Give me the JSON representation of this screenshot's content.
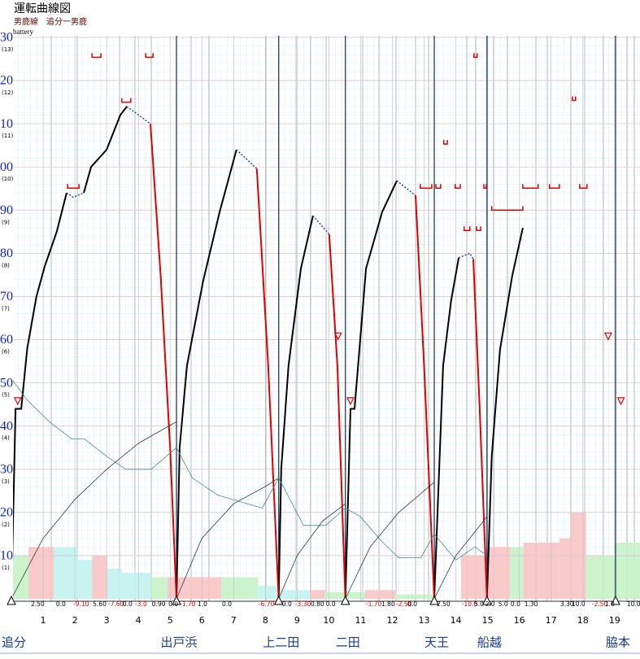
{
  "chart_data": {
    "type": "line",
    "title": "運転曲線図",
    "subtitle": "男鹿線　追分一男鹿",
    "y_axis_label": "battery",
    "xlim": [
      0,
      19.8
    ],
    "ylim": [
      0,
      130
    ],
    "xticks": [
      1,
      2,
      3,
      4,
      5,
      6,
      7,
      8,
      9,
      10,
      11,
      12,
      13,
      14,
      15,
      16,
      17,
      18,
      19
    ],
    "yticks": [
      {
        "value": 130,
        "label": "30"
      },
      {
        "value": 120,
        "label": "20"
      },
      {
        "value": 110,
        "label": "10"
      },
      {
        "value": 100,
        "label": "00"
      },
      90,
      80,
      70,
      60,
      50,
      40,
      30,
      20,
      10
    ],
    "y2lim": [
      0,
      13
    ],
    "y2ticks": [
      {
        "value": 13,
        "label": "(13)"
      },
      {
        "value": 12,
        "label": "(12)"
      },
      {
        "value": 11,
        "label": "(11)"
      },
      {
        "value": 10,
        "label": "(10)"
      },
      {
        "value": 9,
        "label": "(9)"
      },
      {
        "value": 8,
        "label": "(8)"
      },
      {
        "value": 7,
        "label": "(7)"
      },
      {
        "value": 6,
        "label": "(6)"
      },
      {
        "value": 5,
        "label": "(5)"
      },
      {
        "value": 4,
        "label": "(4)"
      },
      {
        "value": 3,
        "label": "(3)"
      },
      {
        "value": 2,
        "label": "(2)"
      },
      {
        "value": 1,
        "label": "(1)"
      }
    ],
    "grid": true,
    "series": [
      {
        "color": "#000000",
        "style": "solid",
        "x": [
          0,
          0.13,
          0.31,
          0.5,
          0.79,
          1.05,
          1.43,
          1.74,
          null,
          2.28,
          2.51,
          3.0,
          3.43,
          3.64,
          null,
          5.2,
          5.3,
          5.53,
          6.04,
          6.56,
          7.09,
          null,
          8.42,
          8.5,
          8.73,
          9.12,
          9.5,
          null,
          10.52,
          10.68,
          10.81,
          11.17,
          11.68,
          12.14,
          null,
          13.32,
          13.6,
          13.85,
          14.09,
          null,
          14.98,
          15.13,
          15.39,
          15.77,
          16.11
        ],
        "values": [
          0,
          44,
          44,
          58,
          70,
          77,
          85,
          94,
          null,
          94,
          100,
          104,
          112,
          114,
          null,
          0,
          35,
          54,
          73.6,
          89.6,
          104,
          null,
          0,
          30,
          54,
          76.5,
          88.7,
          null,
          0,
          44,
          44,
          76.5,
          89.6,
          96.8,
          null,
          0,
          54,
          69,
          79,
          null,
          0,
          33,
          57.6,
          74.6,
          85.9
        ]
      },
      {
        "color": "#2a3fd0",
        "style": "dotted",
        "x": [
          1.74,
          1.95,
          2.28,
          null,
          3.64,
          4.38,
          null,
          7.09,
          7.73,
          null,
          9.5,
          10.01,
          null,
          12.14,
          12.73,
          null,
          14.09,
          14.44,
          14.55
        ],
        "values": [
          94,
          93,
          94,
          null,
          114,
          110,
          null,
          104,
          99.6,
          null,
          88.7,
          84.4,
          null,
          96.8,
          93.4,
          null,
          79,
          80,
          78.7
        ]
      },
      {
        "color": "#e00000",
        "style": "solid",
        "x": [
          4.38,
          4.7,
          5.0,
          5.2,
          null,
          7.73,
          8.09,
          8.42,
          null,
          10.01,
          10.27,
          10.52,
          null,
          12.73,
          13.0,
          13.32,
          null,
          14.55,
          14.75,
          14.98
        ],
        "values": [
          110,
          75,
          35,
          0,
          null,
          99.6,
          54,
          0,
          null,
          84.4,
          54,
          0,
          null,
          93.4,
          54,
          0,
          null,
          78.7,
          44.4,
          0
        ]
      },
      {
        "color": "#4a8a8a",
        "style": "thin",
        "x": [
          0,
          0.5,
          1.2,
          1.9,
          2.3,
          3.0,
          3.6,
          4.4,
          5.2,
          5.7,
          6.5,
          7.9,
          8.42,
          9.2,
          9.9,
          10.52,
          11.0,
          11.7,
          12.2,
          12.9,
          13.32,
          14.0,
          14.6,
          14.98
        ],
        "values": [
          51,
          46,
          41,
          37,
          37,
          33,
          30,
          30,
          35,
          28,
          24,
          21,
          28,
          17,
          17,
          21,
          19,
          13,
          9.5,
          9.5,
          15,
          9,
          12,
          10
        ]
      },
      {
        "color": "#2b3b3b",
        "style": "thin",
        "x": [
          0,
          1,
          2,
          3,
          4,
          5.2,
          null,
          5.2,
          6,
          7,
          8,
          8.42,
          null,
          8.42,
          9,
          9.8,
          10.52,
          null,
          10.52,
          11.3,
          12.2,
          13.32,
          null,
          13.32,
          14,
          14.98
        ],
        "values": [
          0,
          14,
          23,
          30,
          36,
          41,
          null,
          0,
          14,
          22,
          26,
          28,
          null,
          0,
          10,
          18,
          22,
          null,
          0,
          12,
          20,
          27,
          null,
          0,
          10,
          19
        ]
      }
    ],
    "limits": [
      {
        "x": [
          2.54,
          2.82
        ],
        "value": 125.4
      },
      {
        "x": [
          4.23,
          4.46
        ],
        "value": 125.4
      },
      {
        "x": [
          3.48,
          3.76
        ],
        "value": 115
      },
      {
        "x": [
          1.77,
          2.13
        ],
        "value": 95.1
      },
      {
        "x": [
          12.88,
          13.24
        ],
        "value": 95.1
      },
      {
        "x": [
          13.37,
          13.52
        ],
        "value": 95.1
      },
      {
        "x": [
          13.98,
          14.14
        ],
        "value": 95.1
      },
      {
        "x": [
          14.88,
          14.96
        ],
        "value": 95.1
      },
      {
        "x": [
          16.11,
          16.59
        ],
        "value": 95.1
      },
      {
        "x": [
          16.95,
          17.26
        ],
        "value": 95.1
      },
      {
        "x": [
          17.9,
          18.13
        ],
        "value": 95.1
      },
      {
        "x": [
          15.13,
          16.11
        ],
        "value": 90
      },
      {
        "x": [
          14.26,
          14.44
        ],
        "value": 85.3
      },
      {
        "x": [
          14.65,
          14.78
        ],
        "value": 85.3
      },
      {
        "x": [
          13.62,
          13.73
        ],
        "value": 105.3
      },
      {
        "x": [
          14.57,
          14.67
        ],
        "value": 125.4
      },
      {
        "x": [
          17.67,
          17.77
        ],
        "value": 115.4
      }
    ],
    "markers": [
      {
        "x": 0.2,
        "value": 45.8
      },
      {
        "x": 10.29,
        "value": 60.8
      },
      {
        "x": 10.68,
        "value": 45.8
      },
      {
        "x": 18.8,
        "value": 60.8
      },
      {
        "x": 19.2,
        "value": 45.8
      }
    ],
    "profile": [
      {
        "x": [
          0,
          0.54
        ],
        "value": 10,
        "color": "#c6f2c6"
      },
      {
        "x": [
          0.54,
          1.33
        ],
        "value": 12,
        "color": "#f7c4c4"
      },
      {
        "x": [
          1.33,
          2.1
        ],
        "value": 12,
        "color": "#c2f2ee"
      },
      {
        "x": [
          2.1,
          2.54
        ],
        "value": 9,
        "color": "#c2f2ee"
      },
      {
        "x": [
          2.54,
          3.02
        ],
        "value": 10,
        "color": "#f7c4c4"
      },
      {
        "x": [
          3.02,
          3.48
        ],
        "value": 7,
        "color": "#c2f2ee"
      },
      {
        "x": [
          3.48,
          4.4
        ],
        "value": 6,
        "color": "#c2f2ee"
      },
      {
        "x": [
          4.4,
          4.92
        ],
        "value": 5,
        "color": "#c6f2c6"
      },
      {
        "x": [
          4.92,
          6.61
        ],
        "value": 5,
        "color": "#f7c4c4"
      },
      {
        "x": [
          6.61,
          7.76
        ],
        "value": 5,
        "color": "#c6f2c6"
      },
      {
        "x": [
          7.76,
          8.5
        ],
        "value": 3,
        "color": "#c2f2ee"
      },
      {
        "x": [
          8.5,
          9.4
        ],
        "value": 2,
        "color": "#c2f2ee"
      },
      {
        "x": [
          9.4,
          9.88
        ],
        "value": 2,
        "color": "#f7c4c4"
      },
      {
        "x": [
          9.88,
          11.14
        ],
        "value": 1.5,
        "color": "#c6f2c6"
      },
      {
        "x": [
          11.14,
          12.09
        ],
        "value": 2,
        "color": "#f7c4c4"
      },
      {
        "x": [
          12.09,
          13.37
        ],
        "value": 1,
        "color": "#c6f2c6"
      },
      {
        "x": [
          14.16,
          14.9
        ],
        "value": 10,
        "color": "#f7c4c4"
      },
      {
        "x": [
          14.9,
          15.7
        ],
        "value": 12,
        "color": "#f7c4c4"
      },
      {
        "x": [
          15.7,
          16.13
        ],
        "value": 12,
        "color": "#c6f2c6"
      },
      {
        "x": [
          16.13,
          17.26
        ],
        "value": 13,
        "color": "#f7c4c4"
      },
      {
        "x": [
          17.26,
          17.62
        ],
        "value": 14,
        "color": "#f7c4c4"
      },
      {
        "x": [
          17.62,
          18.1
        ],
        "value": 20,
        "color": "#f7c4c4"
      },
      {
        "x": [
          18.1,
          19.0
        ],
        "value": 10,
        "color": "#c6f2c6"
      },
      {
        "x": [
          19.0,
          19.8
        ],
        "value": 13,
        "color": "#c6f2c6"
      }
    ],
    "gradients": [
      {
        "km": 0.59,
        "label": "2.50"
      },
      {
        "km": 1.38,
        "label": "0.0"
      },
      {
        "km": 1.92,
        "label": "-9.10"
      },
      {
        "km": 2.54,
        "label": "5.60"
      },
      {
        "km": 3.02,
        "label": "-7.60"
      },
      {
        "km": 3.48,
        "label": "0.0"
      },
      {
        "km": 3.87,
        "label": "-3.0"
      },
      {
        "km": 4.4,
        "label": "0.90"
      },
      {
        "km": 4.92,
        "label": "0.0"
      },
      {
        "km": 5.28,
        "label": "-1.70"
      },
      {
        "km": 5.84,
        "label": "1.0"
      },
      {
        "km": 6.61,
        "label": "0.0"
      },
      {
        "km": 7.76,
        "label": "-6.70"
      },
      {
        "km": 8.5,
        "label": "0.0"
      },
      {
        "km": 8.91,
        "label": "-3.30"
      },
      {
        "km": 9.4,
        "label": "0.80"
      },
      {
        "km": 9.88,
        "label": "0.0"
      },
      {
        "km": 11.14,
        "label": "-1.70"
      },
      {
        "km": 11.63,
        "label": "1.80"
      },
      {
        "km": 12.09,
        "label": "-2.50"
      },
      {
        "km": 12.45,
        "label": "0.0"
      },
      {
        "km": 13.37,
        "label": "2.50"
      },
      {
        "km": 14.16,
        "label": "-10.0"
      },
      {
        "km": 14.55,
        "label": "5.0"
      },
      {
        "km": 14.9,
        "label": "2.0"
      },
      {
        "km": 15.31,
        "label": "5.0"
      },
      {
        "km": 15.7,
        "label": "0.0"
      },
      {
        "km": 16.13,
        "label": "1.30"
      },
      {
        "km": 17.26,
        "label": "3.30"
      },
      {
        "km": 17.62,
        "label": "10.0"
      },
      {
        "km": 18.26,
        "label": "-2.50"
      },
      {
        "km": 18.67,
        "label": "1.0"
      },
      {
        "km": 19.36,
        "label": "10.0"
      }
    ],
    "stations": [
      {
        "name": "追分",
        "km": 0
      },
      {
        "name": "出戸浜",
        "km": 5.2
      },
      {
        "name": "上二田",
        "km": 8.42
      },
      {
        "name": "二田",
        "km": 10.52
      },
      {
        "name": "天王",
        "km": 13.32
      },
      {
        "name": "船越",
        "km": 14.98
      },
      {
        "name": "脇本",
        "km": 19.03
      }
    ]
  }
}
